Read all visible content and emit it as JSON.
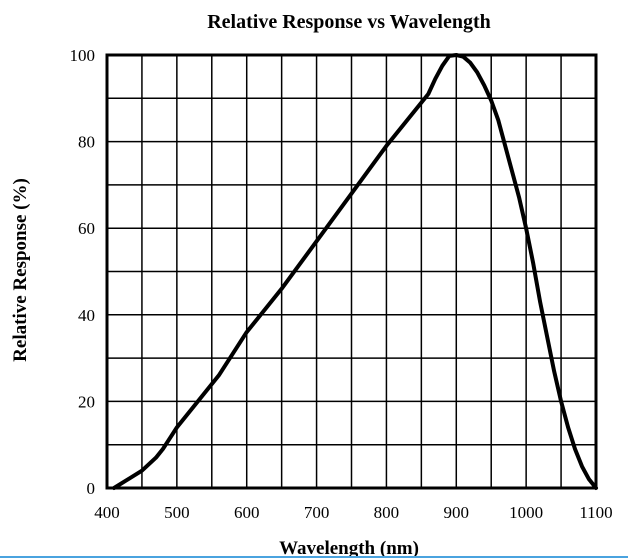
{
  "chart_data": {
    "type": "line",
    "title": "Relative Response vs Wavelength",
    "xlabel": "Wavelength (nm)",
    "ylabel": "Relative Response (%)",
    "xlim": [
      400,
      1100
    ],
    "ylim": [
      0,
      100
    ],
    "xticks": [
      "400",
      "500",
      "600",
      "700",
      "800",
      "900",
      "1000",
      "1100"
    ],
    "yticks": [
      "0",
      "20",
      "40",
      "60",
      "80",
      "100"
    ],
    "grid": true,
    "line_color": "#000000",
    "series": [
      {
        "x": [
          410,
          430,
          450,
          470,
          480,
          490,
          500,
          520,
          540,
          560,
          580,
          600,
          620,
          650,
          700,
          750,
          800,
          830,
          860,
          870,
          880,
          890,
          900,
          910,
          920,
          930,
          940,
          950,
          960,
          970,
          980,
          990,
          1000,
          1010,
          1020,
          1030,
          1040,
          1050,
          1060,
          1070,
          1080,
          1090,
          1100
        ],
        "y": [
          0,
          2,
          4,
          7,
          9,
          11.5,
          14,
          18,
          22,
          26,
          31,
          36,
          40,
          46,
          57,
          68,
          79,
          85,
          91,
          94.5,
          97.5,
          99.8,
          100,
          99.6,
          98.2,
          96,
          93,
          89.5,
          85,
          79,
          73,
          67,
          60,
          52,
          43,
          35,
          27,
          20,
          14,
          9,
          5,
          2,
          0
        ]
      }
    ]
  }
}
